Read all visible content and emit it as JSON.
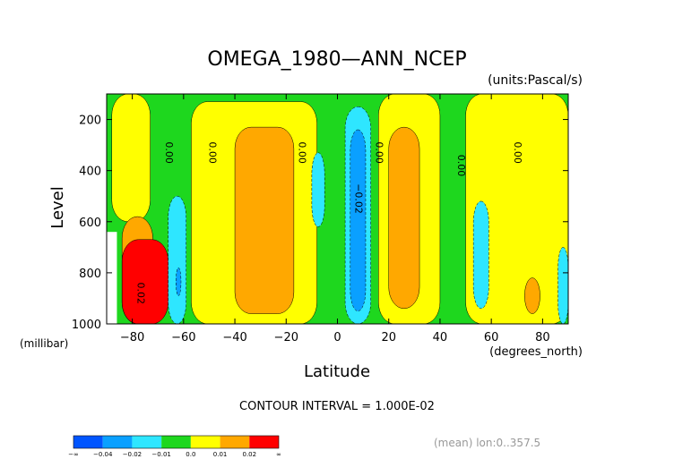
{
  "chart_data": {
    "type": "heatmap",
    "title": "OMEGA_1980—ANN_NCEP",
    "units": "(units:Pascal/s)",
    "xlabel": "Latitude",
    "x_units": "(degrees_north)",
    "ylabel": "Level",
    "y_units": "(millibar)",
    "xlim": [
      -90,
      90
    ],
    "ylim": [
      1000,
      100
    ],
    "x_ticks": [
      "−80",
      "−60",
      "−40",
      "−20",
      "0",
      "20",
      "40",
      "60",
      "80"
    ],
    "y_ticks": [
      "200",
      "400",
      "600",
      "800",
      "1000"
    ],
    "contour_interval": "CONTOUR INTERVAL = 1.000E-02",
    "footer_note": "(mean) lon:0..357.5",
    "contour_labels": [
      "0.00",
      "0.00",
      "0.00",
      "0.00",
      "0.00",
      "0.00",
      "−0.02",
      "0.02"
    ],
    "colorbar": {
      "colors": [
        "#0055ff",
        "#0aa0ff",
        "#2ee6ff",
        "#1ed71e",
        "#ffff00",
        "#ffa800",
        "#ff0000"
      ],
      "labels": [
        "−∞",
        "−0.04",
        "−0.02",
        "−0.01",
        "0.0",
        "0.01",
        "0.02",
        "∞"
      ]
    },
    "regions": [
      {
        "level": "0.00 to 0.01",
        "color": "#ffff00",
        "lat_range": [
          -88,
          -73
        ],
        "p_range": [
          100,
          600
        ]
      },
      {
        "level": "0.00 to 0.01",
        "color": "#ffff00",
        "lat_range": [
          -57,
          -8
        ],
        "p_range": [
          130,
          1000
        ]
      },
      {
        "level": "0.00 to 0.01",
        "color": "#ffff00",
        "lat_range": [
          16,
          40
        ],
        "p_range": [
          100,
          1000
        ]
      },
      {
        "level": "0.00 to 0.01",
        "color": "#ffff00",
        "lat_range": [
          50,
          90
        ],
        "p_range": [
          100,
          1000
        ]
      },
      {
        "level": "0.01 to 0.02",
        "color": "#ffa800",
        "lat_range": [
          -40,
          -17
        ],
        "p_range": [
          230,
          960
        ]
      },
      {
        "level": "0.01 to 0.02",
        "color": "#ffa800",
        "lat_range": [
          20,
          32
        ],
        "p_range": [
          230,
          940
        ]
      },
      {
        "level": "0.01 to 0.02",
        "color": "#ffa800",
        "lat_range": [
          -84,
          -72
        ],
        "p_range": [
          580,
          1000
        ]
      },
      {
        "level": "0.01 to 0.02",
        "color": "#ffa800",
        "lat_range": [
          73,
          79
        ],
        "p_range": [
          820,
          960
        ]
      },
      {
        "level": "> 0.02",
        "color": "#ff0000",
        "lat_range": [
          -84,
          -66
        ],
        "p_range": [
          670,
          1000
        ]
      },
      {
        "level": "-0.01 to -0.02",
        "color": "#2ee6ff",
        "lat_range": [
          3,
          13
        ],
        "p_range": [
          150,
          1000
        ]
      },
      {
        "level": "-0.01 to -0.02",
        "color": "#2ee6ff",
        "lat_range": [
          -10,
          -5
        ],
        "p_range": [
          330,
          620
        ]
      },
      {
        "level": "-0.01 to -0.02",
        "color": "#2ee6ff",
        "lat_range": [
          -66,
          -59
        ],
        "p_range": [
          500,
          1000
        ]
      },
      {
        "level": "-0.01 to -0.02",
        "color": "#2ee6ff",
        "lat_range": [
          53,
          59
        ],
        "p_range": [
          520,
          940
        ]
      },
      {
        "level": "-0.01 to -0.02",
        "color": "#2ee6ff",
        "lat_range": [
          86,
          90
        ],
        "p_range": [
          700,
          1000
        ]
      },
      {
        "level": "-0.02 to -0.04",
        "color": "#0aa0ff",
        "lat_range": [
          5,
          11
        ],
        "p_range": [
          240,
          950
        ]
      },
      {
        "level": "-0.02 to -0.04",
        "color": "#0aa0ff",
        "lat_range": [
          -63,
          -61
        ],
        "p_range": [
          780,
          890
        ]
      }
    ]
  }
}
